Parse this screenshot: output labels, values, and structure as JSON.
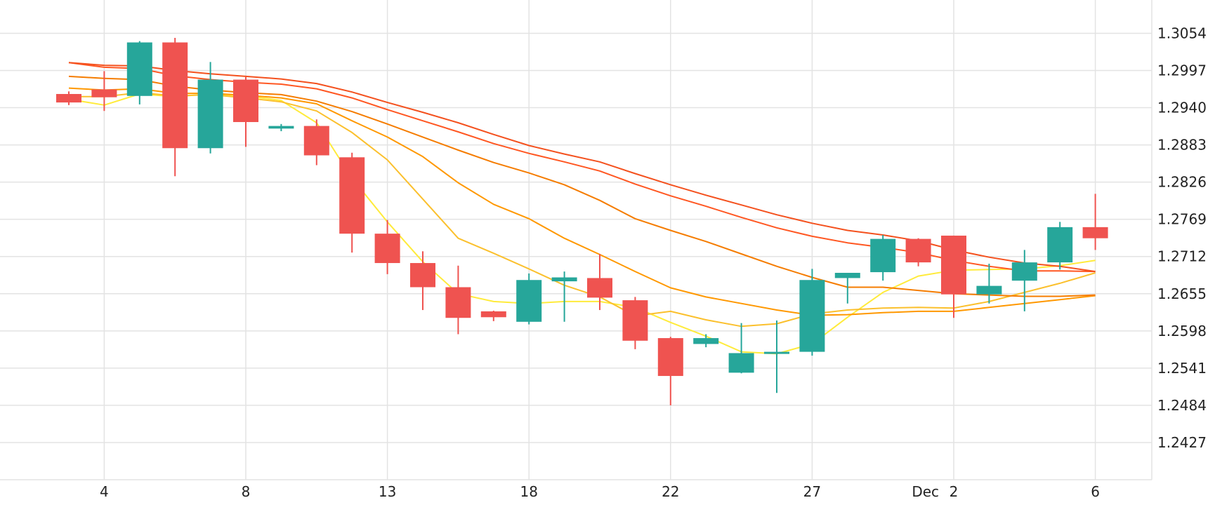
{
  "chart_data": {
    "type": "candlestick",
    "title": "",
    "xlabel": "",
    "ylabel": "",
    "grid": true,
    "legend": "none",
    "y_axis_position": "right",
    "ylim": [
      1.237,
      1.3105
    ],
    "y_ticks": [
      "1.3054",
      "1.2997",
      "1.2940",
      "1.2883",
      "1.2826",
      "1.2769",
      "1.2712",
      "1.2655",
      "1.2598",
      "1.2541",
      "1.2484",
      "1.2427"
    ],
    "x_ticks": [
      {
        "index": 1,
        "label": "4"
      },
      {
        "index": 5,
        "label": "8"
      },
      {
        "index": 9,
        "label": "13"
      },
      {
        "index": 13,
        "label": "18"
      },
      {
        "index": 17,
        "label": "22"
      },
      {
        "index": 21,
        "label": "27"
      },
      {
        "index": 24.2,
        "label": "Dec"
      },
      {
        "index": 25,
        "label": "2"
      },
      {
        "index": 29,
        "label": "6"
      }
    ],
    "colors": {
      "up": "#26a69a",
      "down": "#ef5350",
      "grid": "#e3e3e3",
      "text": "#222222"
    },
    "candles": [
      {
        "open": 1.2961,
        "high": 1.2965,
        "low": 1.2944,
        "close": 1.2948
      },
      {
        "open": 1.2968,
        "high": 1.2996,
        "low": 1.2935,
        "close": 1.2956
      },
      {
        "open": 1.2958,
        "high": 1.3042,
        "low": 1.2945,
        "close": 1.304
      },
      {
        "open": 1.304,
        "high": 1.3047,
        "low": 1.2835,
        "close": 1.2878
      },
      {
        "open": 1.2878,
        "high": 1.301,
        "low": 1.287,
        "close": 1.2983
      },
      {
        "open": 1.2983,
        "high": 1.2987,
        "low": 1.288,
        "close": 1.2918
      },
      {
        "open": 1.2908,
        "high": 1.2915,
        "low": 1.2904,
        "close": 1.2912
      },
      {
        "open": 1.2912,
        "high": 1.2922,
        "low": 1.2852,
        "close": 1.2867
      },
      {
        "open": 1.2864,
        "high": 1.2871,
        "low": 1.2718,
        "close": 1.2747
      },
      {
        "open": 1.2747,
        "high": 1.2768,
        "low": 1.2685,
        "close": 1.2702
      },
      {
        "open": 1.2702,
        "high": 1.272,
        "low": 1.263,
        "close": 1.2665
      },
      {
        "open": 1.2665,
        "high": 1.2698,
        "low": 1.2593,
        "close": 1.2618
      },
      {
        "open": 1.2628,
        "high": 1.2629,
        "low": 1.2613,
        "close": 1.2619
      },
      {
        "open": 1.2612,
        "high": 1.2686,
        "low": 1.2608,
        "close": 1.2676
      },
      {
        "open": 1.2674,
        "high": 1.2689,
        "low": 1.2612,
        "close": 1.268
      },
      {
        "open": 1.2679,
        "high": 1.2716,
        "low": 1.263,
        "close": 1.2649
      },
      {
        "open": 1.2645,
        "high": 1.265,
        "low": 1.257,
        "close": 1.2583
      },
      {
        "open": 1.2587,
        "high": 1.2589,
        "low": 1.2484,
        "close": 1.2529
      },
      {
        "open": 1.2578,
        "high": 1.2593,
        "low": 1.2573,
        "close": 1.2587
      },
      {
        "open": 1.2534,
        "high": 1.261,
        "low": 1.2533,
        "close": 1.2564
      },
      {
        "open": 1.2564,
        "high": 1.2614,
        "low": 1.2503,
        "close": 1.2566
      },
      {
        "open": 1.2566,
        "high": 1.2693,
        "low": 1.256,
        "close": 1.2676
      },
      {
        "open": 1.2679,
        "high": 1.2687,
        "low": 1.264,
        "close": 1.2687
      },
      {
        "open": 1.2688,
        "high": 1.2745,
        "low": 1.2675,
        "close": 1.2739
      },
      {
        "open": 1.2739,
        "high": 1.274,
        "low": 1.2697,
        "close": 1.2703
      },
      {
        "open": 1.2744,
        "high": 1.2744,
        "low": 1.2618,
        "close": 1.2654
      },
      {
        "open": 1.2654,
        "high": 1.2701,
        "low": 1.264,
        "close": 1.2667
      },
      {
        "open": 1.2675,
        "high": 1.2722,
        "low": 1.2628,
        "close": 1.2703
      },
      {
        "open": 1.2703,
        "high": 1.2765,
        "low": 1.2692,
        "close": 1.2757
      },
      {
        "open": 1.2757,
        "high": 1.2808,
        "low": 1.2722,
        "close": 1.274
      }
    ],
    "series": [
      {
        "color": "#ffeb3b",
        "values": [
          1.2953,
          1.2944,
          1.2961,
          1.2957,
          1.2961,
          1.2958,
          1.2951,
          1.2917,
          1.2832,
          1.2765,
          1.2704,
          1.2655,
          1.2643,
          1.264,
          1.2643,
          1.2643,
          1.2634,
          1.2611,
          1.259,
          1.2566,
          1.2563,
          1.2578,
          1.2619,
          1.2657,
          1.2682,
          1.2691,
          1.2692,
          1.2693,
          1.2698,
          1.2706
        ]
      },
      {
        "color": "#fbc02d",
        "values": [
          1.2957,
          1.2957,
          1.2963,
          1.2958,
          1.296,
          1.2955,
          1.2949,
          1.2935,
          1.2902,
          1.286,
          1.28,
          1.274,
          1.2717,
          1.2693,
          1.2668,
          1.265,
          1.2621,
          1.2628,
          1.2615,
          1.2605,
          1.2609,
          1.2624,
          1.263,
          1.2633,
          1.2634,
          1.2633,
          1.2643,
          1.2657,
          1.2671,
          1.2687
        ]
      },
      {
        "color": "#ff9800",
        "values": [
          1.297,
          1.2967,
          1.2969,
          1.2962,
          1.2962,
          1.2959,
          1.2955,
          1.2946,
          1.292,
          1.2895,
          1.2865,
          1.2825,
          1.2792,
          1.277,
          1.274,
          1.2715,
          1.2689,
          1.2664,
          1.265,
          1.264,
          1.263,
          1.2622,
          1.2623,
          1.2626,
          1.2628,
          1.2628,
          1.2634,
          1.264,
          1.2646,
          1.2652
        ]
      },
      {
        "color": "#f57c00",
        "values": [
          1.2988,
          1.2985,
          1.2983,
          1.2973,
          1.2967,
          1.2963,
          1.296,
          1.295,
          1.2934,
          1.2915,
          1.2895,
          1.2875,
          1.2856,
          1.284,
          1.2822,
          1.2798,
          1.277,
          1.2752,
          1.2735,
          1.2716,
          1.2697,
          1.268,
          1.2665,
          1.2665,
          1.266,
          1.2655,
          1.2653,
          1.2651,
          1.2651,
          1.2653
        ]
      },
      {
        "color": "#ff5722",
        "values": [
          1.3009,
          1.3002,
          1.3,
          1.2989,
          1.2983,
          1.2979,
          1.2976,
          1.2969,
          1.2955,
          1.2937,
          1.292,
          1.2903,
          1.2885,
          1.287,
          1.2857,
          1.2843,
          1.2823,
          1.2805,
          1.2789,
          1.2772,
          1.2756,
          1.2743,
          1.2733,
          1.2726,
          1.2718,
          1.2706,
          1.2697,
          1.269,
          1.269,
          1.2689
        ]
      },
      {
        "color": "#f4511e",
        "values": [
          1.3009,
          1.3005,
          1.3004,
          1.2997,
          1.2992,
          1.2988,
          1.2984,
          1.2977,
          1.2964,
          1.2948,
          1.2933,
          1.2917,
          1.2899,
          1.2882,
          1.2869,
          1.2857,
          1.2839,
          1.2822,
          1.2806,
          1.2791,
          1.2776,
          1.2763,
          1.2752,
          1.2745,
          1.2736,
          1.2722,
          1.2711,
          1.2702,
          1.2697,
          1.2689
        ]
      }
    ]
  }
}
